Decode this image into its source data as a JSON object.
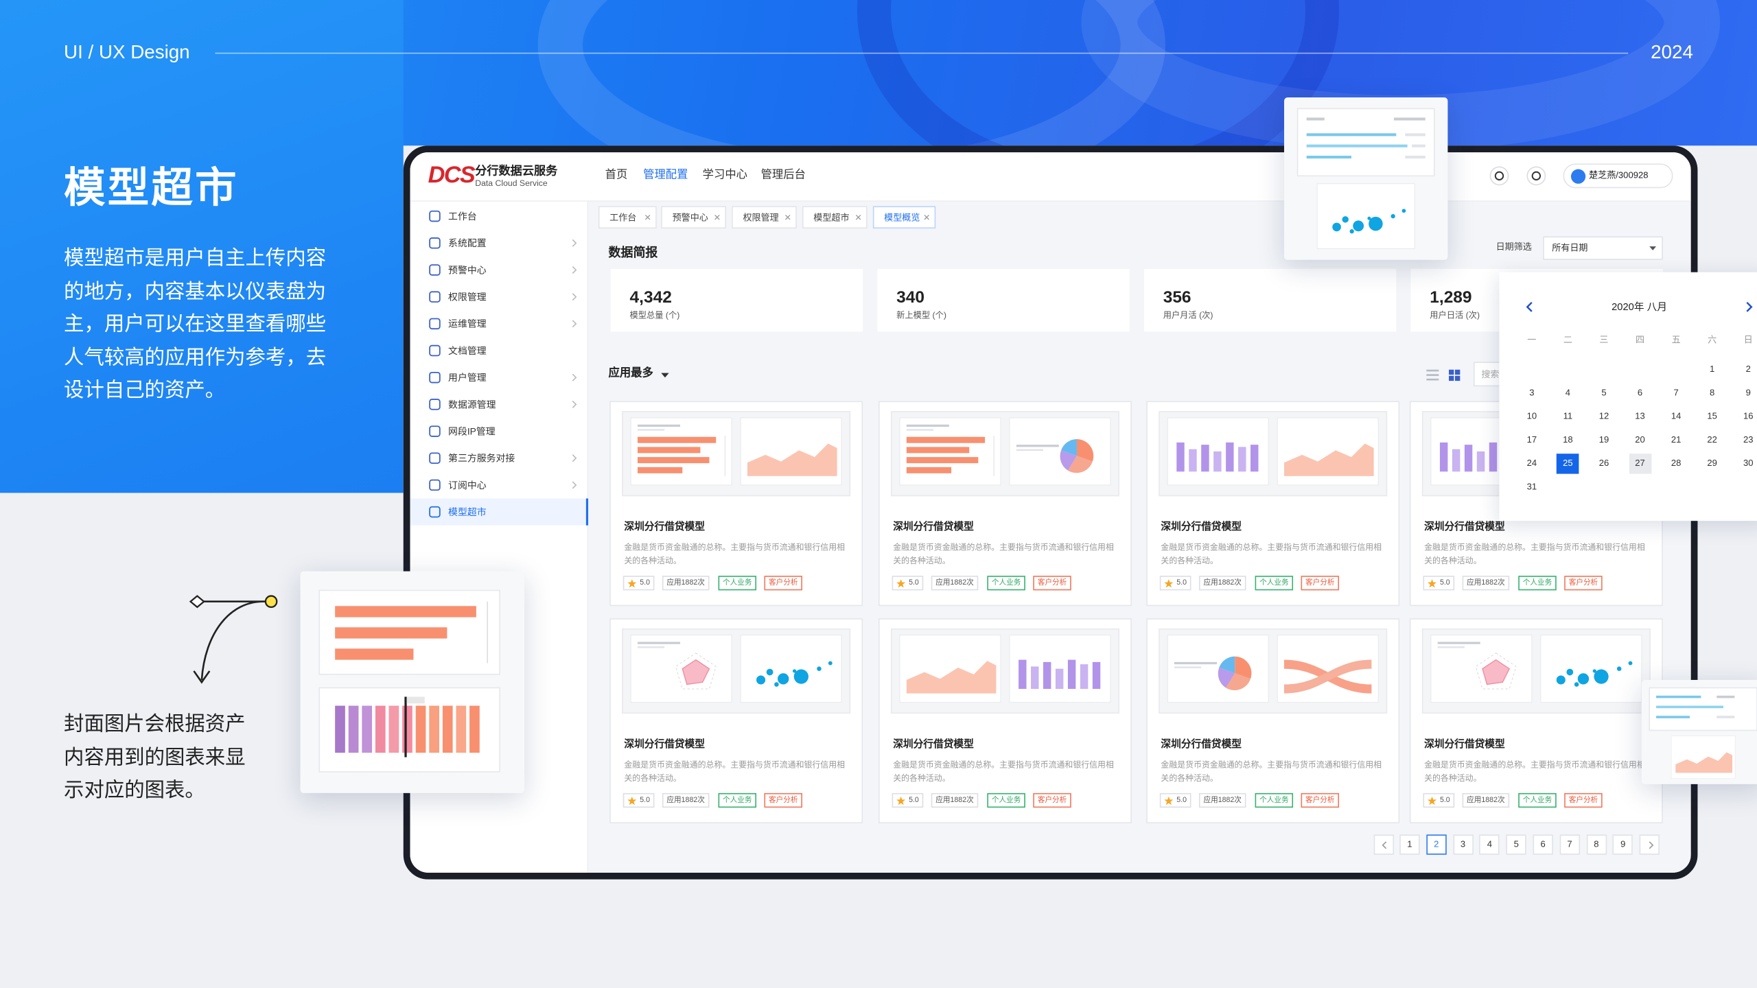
{
  "header": {
    "label": "UI / UX Design",
    "year": "2024"
  },
  "intro": {
    "title": "模型超市",
    "description": "模型超市是用户自主上传内容的地方，内容基本以仪表盘为主，用户可以在这里查看哪些人气较高的应用作为参考，去设计自己的资产。"
  },
  "note": "封面图片会根据资产内容用到的图表来显示对应的图表。",
  "app": {
    "logo": "DCS",
    "brand": "分行数据云服务",
    "brand_en": "Data Cloud Service",
    "nav": [
      "首页",
      "管理配置",
      "学习中心",
      "管理后台"
    ],
    "nav_active": 1,
    "user": "楚芝燕/300928",
    "sidebar": [
      "工作台",
      "系统配置",
      "预警中心",
      "权限管理",
      "运维管理",
      "文档管理",
      "用户管理",
      "数据源管理",
      "网段IP管理",
      "第三方服务对接",
      "订阅中心",
      "模型超市"
    ],
    "sidebar_active": 11,
    "tabs": [
      "工作台",
      "预警中心",
      "权限管理",
      "模型超市",
      "模型概览"
    ],
    "tab_active": 4,
    "section_title": "数据简报",
    "date_filter": {
      "label": "日期筛选",
      "value": "所有日期"
    },
    "stats": [
      {
        "value": "4,342",
        "label": "模型总量 (个)"
      },
      {
        "value": "340",
        "label": "新上模型 (个)"
      },
      {
        "value": "356",
        "label": "用户月活 (次)"
      },
      {
        "value": "1,289",
        "label": "用户日活 (次)"
      }
    ],
    "sort_label": "应用最多",
    "search_placeholder": "搜索",
    "cards": [
      {
        "title": "深圳分行借贷模型",
        "description": "金融是货币资金融通的总称。主要指与货币流通和银行信用相关的各种活动。",
        "rating": "5.0",
        "usage": "应用1882次",
        "tags": [
          "个人业务",
          "客户分析"
        ]
      },
      {
        "title": "深圳分行借贷模型",
        "description": "金融是货币资金融通的总称。主要指与货币流通和银行信用相关的各种活动。",
        "rating": "5.0",
        "usage": "应用1882次",
        "tags": [
          "个人业务",
          "客户分析"
        ]
      },
      {
        "title": "深圳分行借贷模型",
        "description": "金融是货币资金融通的总称。主要指与货币流通和银行信用相关的各种活动。",
        "rating": "5.0",
        "usage": "应用1882次",
        "tags": [
          "个人业务",
          "客户分析"
        ]
      },
      {
        "title": "深圳分行借贷模型",
        "description": "金融是货币资金融通的总称。主要指与货币流通和银行信用相关的各种活动。",
        "rating": "5.0",
        "usage": "应用1882次",
        "tags": [
          "个人业务",
          "客户分析"
        ]
      },
      {
        "title": "深圳分行借贷模型",
        "description": "金融是货币资金融通的总称。主要指与货币流通和银行信用相关的各种活动。",
        "rating": "5.0",
        "usage": "应用1882次",
        "tags": [
          "个人业务",
          "客户分析"
        ]
      },
      {
        "title": "深圳分行借贷模型",
        "description": "金融是货币资金融通的总称。主要指与货币流通和银行信用相关的各种活动。",
        "rating": "5.0",
        "usage": "应用1882次",
        "tags": [
          "个人业务",
          "客户分析"
        ]
      },
      {
        "title": "深圳分行借贷模型",
        "description": "金融是货币资金融通的总称。主要指与货币流通和银行信用相关的各种活动。",
        "rating": "5.0",
        "usage": "应用1882次",
        "tags": [
          "个人业务",
          "客户分析"
        ]
      },
      {
        "title": "深圳分行借贷模型",
        "description": "金融是货币资金融通的总称。主要指与货币流通和银行信用相关的各种活动。",
        "rating": "5.0",
        "usage": "应用1882次",
        "tags": [
          "个人业务",
          "客户分析"
        ]
      }
    ],
    "pagination": {
      "pages": [
        1,
        2,
        3,
        4,
        5,
        6,
        7,
        8,
        9
      ],
      "current": 2
    },
    "calendar": {
      "title": "2020年 八月",
      "weekdays": [
        "一",
        "二",
        "三",
        "四",
        "五",
        "六",
        "日"
      ],
      "days": [
        1,
        2,
        3,
        4,
        5,
        6,
        7,
        8,
        9,
        10,
        11,
        12,
        13,
        14,
        15,
        16,
        17,
        18,
        19,
        20,
        21,
        22,
        23,
        24,
        25,
        26,
        27,
        28,
        29,
        30,
        31
      ],
      "selected": 25,
      "highlighted": 27
    }
  }
}
